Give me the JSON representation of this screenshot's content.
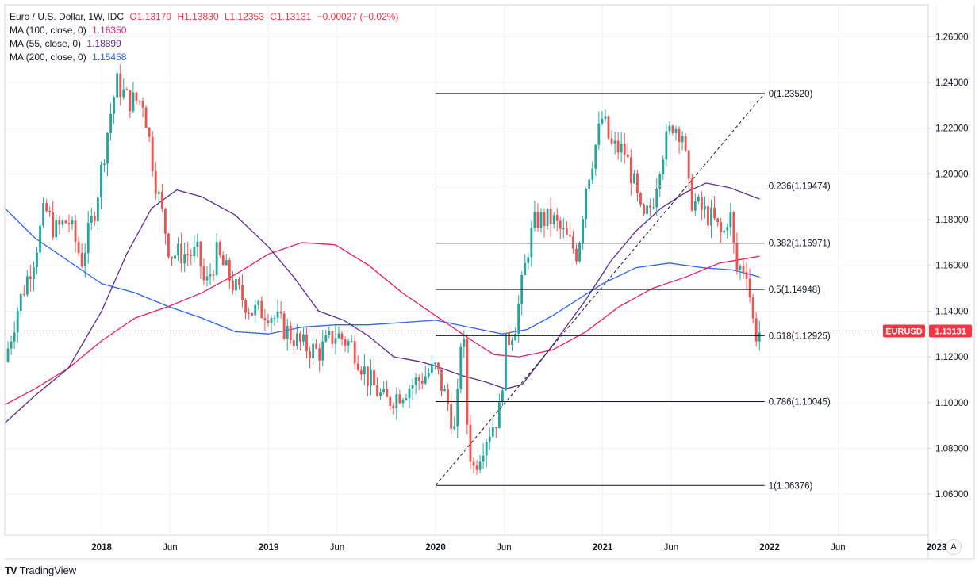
{
  "legend": {
    "main": {
      "name": "Euro / U.S. Dollar, 1W, IDC",
      "o": "O1.13170",
      "h": "H1.13830",
      "l": "L1.12353",
      "c": "C1.13131",
      "chg": "−0.00027 (−0.02%)"
    },
    "ma": [
      {
        "label": "MA (100, close, 0)",
        "value": "1.16350",
        "color": "#e91e63"
      },
      {
        "label": "MA (55, close, 0)",
        "value": "1.18899",
        "color": "#5b2c91"
      },
      {
        "label": "MA (200, close, 0)",
        "value": "1.15458",
        "color": "#2962ff"
      }
    ]
  },
  "branding": {
    "name": "TradingView"
  },
  "scale_button": {
    "label": "A"
  },
  "colors": {
    "up": "#26a69a",
    "down": "#ef5350",
    "grid": "#f0f3fa",
    "axis": "#d1d4dc",
    "badge": "#f23645"
  },
  "chart_data": {
    "type": "candlestick",
    "symbol": "EURUSD",
    "timeframe": "1W",
    "last_price": "1.13131",
    "last_value": 1.13131,
    "ylim": [
      1.042,
      1.274
    ],
    "xlim": [
      2017.42,
      2022.95
    ],
    "y_ticks": [
      1.06,
      1.08,
      1.1,
      1.12,
      1.14,
      1.16,
      1.18,
      1.2,
      1.22,
      1.24,
      1.26
    ],
    "y_tick_labels": [
      "1.06000",
      "1.08000",
      "1.10000",
      "1.12000",
      "1.14000",
      "1.16000",
      "1.18000",
      "1.20000",
      "1.22000",
      "1.24000",
      "1.26000"
    ],
    "x_ticks": [
      {
        "t": 2018.0,
        "label": "2018"
      },
      {
        "t": 2018.41,
        "label": "Jun"
      },
      {
        "t": 2019.0,
        "label": "2019"
      },
      {
        "t": 2019.41,
        "label": "Jun"
      },
      {
        "t": 2020.0,
        "label": "2020"
      },
      {
        "t": 2020.41,
        "label": "Jun"
      },
      {
        "t": 2021.0,
        "label": "2021"
      },
      {
        "t": 2021.41,
        "label": "Jun"
      },
      {
        "t": 2022.0,
        "label": "2022"
      },
      {
        "t": 2022.41,
        "label": "Jun"
      },
      {
        "t": 2023.0,
        "label": "2023"
      }
    ],
    "price_anchors": [
      [
        2017.42,
        1.118
      ],
      [
        2017.5,
        1.142
      ],
      [
        2017.6,
        1.165
      ],
      [
        2017.66,
        1.185
      ],
      [
        2017.72,
        1.175
      ],
      [
        2017.8,
        1.18
      ],
      [
        2017.88,
        1.162
      ],
      [
        2017.96,
        1.185
      ],
      [
        2018.05,
        1.225
      ],
      [
        2018.09,
        1.24
      ],
      [
        2018.16,
        1.232
      ],
      [
        2018.25,
        1.232
      ],
      [
        2018.32,
        1.198
      ],
      [
        2018.41,
        1.165
      ],
      [
        2018.5,
        1.165
      ],
      [
        2018.58,
        1.165
      ],
      [
        2018.62,
        1.15
      ],
      [
        2018.69,
        1.165
      ],
      [
        2018.8,
        1.15
      ],
      [
        2018.9,
        1.14
      ],
      [
        2019.0,
        1.14
      ],
      [
        2019.1,
        1.132
      ],
      [
        2019.2,
        1.125
      ],
      [
        2019.3,
        1.122
      ],
      [
        2019.4,
        1.13
      ],
      [
        2019.5,
        1.125
      ],
      [
        2019.6,
        1.11
      ],
      [
        2019.7,
        1.1
      ],
      [
        2019.8,
        1.105
      ],
      [
        2019.9,
        1.11
      ],
      [
        2020.0,
        1.115
      ],
      [
        2020.08,
        1.098
      ],
      [
        2020.12,
        1.085
      ],
      [
        2020.16,
        1.14
      ],
      [
        2020.19,
        1.09
      ],
      [
        2020.22,
        1.07
      ],
      [
        2020.3,
        1.085
      ],
      [
        2020.38,
        1.095
      ],
      [
        2020.42,
        1.125
      ],
      [
        2020.48,
        1.135
      ],
      [
        2020.56,
        1.17
      ],
      [
        2020.6,
        1.18
      ],
      [
        2020.7,
        1.18
      ],
      [
        2020.8,
        1.17
      ],
      [
        2020.85,
        1.165
      ],
      [
        2020.9,
        1.195
      ],
      [
        2021.0,
        1.225
      ],
      [
        2021.05,
        1.212
      ],
      [
        2021.13,
        1.21
      ],
      [
        2021.18,
        1.198
      ],
      [
        2021.24,
        1.178
      ],
      [
        2021.3,
        1.188
      ],
      [
        2021.35,
        1.208
      ],
      [
        2021.42,
        1.222
      ],
      [
        2021.48,
        1.218
      ],
      [
        2021.52,
        1.19
      ],
      [
        2021.58,
        1.185
      ],
      [
        2021.66,
        1.18
      ],
      [
        2021.72,
        1.172
      ],
      [
        2021.76,
        1.185
      ],
      [
        2021.8,
        1.158
      ],
      [
        2021.86,
        1.16
      ],
      [
        2021.91,
        1.13
      ],
      [
        2021.94,
        1.131
      ]
    ],
    "ma_series": [
      {
        "name": "MA 200",
        "color": "#2962ff",
        "points": [
          [
            2017.42,
            1.185
          ],
          [
            2017.6,
            1.172
          ],
          [
            2017.8,
            1.162
          ],
          [
            2018.0,
            1.152
          ],
          [
            2018.2,
            1.148
          ],
          [
            2018.4,
            1.142
          ],
          [
            2018.6,
            1.137
          ],
          [
            2018.8,
            1.131
          ],
          [
            2019.0,
            1.13
          ],
          [
            2019.2,
            1.133
          ],
          [
            2019.4,
            1.134
          ],
          [
            2019.6,
            1.134
          ],
          [
            2019.8,
            1.135
          ],
          [
            2020.0,
            1.136
          ],
          [
            2020.2,
            1.133
          ],
          [
            2020.4,
            1.13
          ],
          [
            2020.55,
            1.132
          ],
          [
            2020.7,
            1.138
          ],
          [
            2020.85,
            1.145
          ],
          [
            2021.0,
            1.152
          ],
          [
            2021.2,
            1.159
          ],
          [
            2021.4,
            1.161
          ],
          [
            2021.6,
            1.159
          ],
          [
            2021.78,
            1.158
          ],
          [
            2021.94,
            1.155
          ]
        ]
      },
      {
        "name": "MA 100",
        "color": "#e91e63",
        "points": [
          [
            2017.42,
            1.099
          ],
          [
            2017.6,
            1.106
          ],
          [
            2017.8,
            1.115
          ],
          [
            2018.0,
            1.127
          ],
          [
            2018.2,
            1.137
          ],
          [
            2018.4,
            1.142
          ],
          [
            2018.6,
            1.148
          ],
          [
            2018.8,
            1.156
          ],
          [
            2019.0,
            1.165
          ],
          [
            2019.2,
            1.17
          ],
          [
            2019.4,
            1.169
          ],
          [
            2019.6,
            1.16
          ],
          [
            2019.8,
            1.148
          ],
          [
            2020.0,
            1.138
          ],
          [
            2020.2,
            1.128
          ],
          [
            2020.35,
            1.121
          ],
          [
            2020.5,
            1.12
          ],
          [
            2020.7,
            1.123
          ],
          [
            2020.9,
            1.131
          ],
          [
            2021.1,
            1.142
          ],
          [
            2021.3,
            1.15
          ],
          [
            2021.5,
            1.155
          ],
          [
            2021.7,
            1.161
          ],
          [
            2021.94,
            1.164
          ]
        ]
      },
      {
        "name": "MA 55",
        "color": "#5b2c91",
        "points": [
          [
            2017.42,
            1.091
          ],
          [
            2017.6,
            1.103
          ],
          [
            2017.8,
            1.115
          ],
          [
            2018.0,
            1.14
          ],
          [
            2018.15,
            1.165
          ],
          [
            2018.3,
            1.185
          ],
          [
            2018.45,
            1.193
          ],
          [
            2018.6,
            1.19
          ],
          [
            2018.8,
            1.182
          ],
          [
            2019.0,
            1.168
          ],
          [
            2019.15,
            1.155
          ],
          [
            2019.3,
            1.14
          ],
          [
            2019.45,
            1.136
          ],
          [
            2019.6,
            1.129
          ],
          [
            2019.75,
            1.12
          ],
          [
            2019.9,
            1.118
          ],
          [
            2020.0,
            1.116
          ],
          [
            2020.15,
            1.112
          ],
          [
            2020.3,
            1.109
          ],
          [
            2020.42,
            1.106
          ],
          [
            2020.52,
            1.108
          ],
          [
            2020.7,
            1.125
          ],
          [
            2020.9,
            1.145
          ],
          [
            2021.05,
            1.162
          ],
          [
            2021.2,
            1.175
          ],
          [
            2021.35,
            1.185
          ],
          [
            2021.5,
            1.192
          ],
          [
            2021.62,
            1.196
          ],
          [
            2021.76,
            1.194
          ],
          [
            2021.94,
            1.189
          ]
        ]
      }
    ],
    "fib": {
      "x_start": 2020.0,
      "x_end": 2021.97,
      "low": 1.06376,
      "high": 1.2352,
      "levels": [
        {
          "label": "0(1.23520)",
          "value": 1.2352
        },
        {
          "label": "0.236(1.19474)",
          "value": 1.19474
        },
        {
          "label": "0.382(1.16971)",
          "value": 1.16971
        },
        {
          "label": "0.5(1.14948)",
          "value": 1.14948
        },
        {
          "label": "0.618(1.12925)",
          "value": 1.12925
        },
        {
          "label": "0.786(1.10045)",
          "value": 1.10045
        },
        {
          "label": "1(1.06376)",
          "value": 1.06376
        }
      ]
    }
  }
}
